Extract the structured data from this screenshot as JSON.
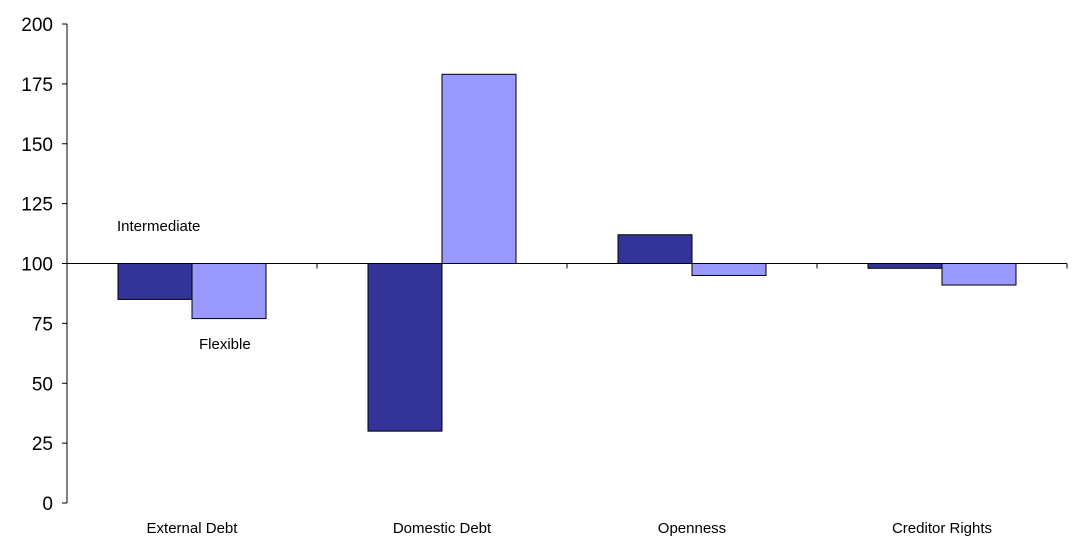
{
  "chart_data": {
    "type": "bar",
    "baseline": 100,
    "categories": [
      "External Debt",
      "Domestic Debt",
      "Openness",
      "Creditor Rights"
    ],
    "series": [
      {
        "name": "Intermediate",
        "color": "#333399",
        "values": [
          85,
          30,
          112,
          98
        ]
      },
      {
        "name": "Flexible",
        "color": "#9999ff",
        "values": [
          77,
          179,
          95,
          91
        ]
      }
    ],
    "ylim": [
      0,
      200
    ],
    "yticks": [
      0,
      25,
      50,
      75,
      100,
      125,
      150,
      175,
      200
    ],
    "title": "",
    "xlabel": "",
    "ylabel": "",
    "grid": false
  }
}
